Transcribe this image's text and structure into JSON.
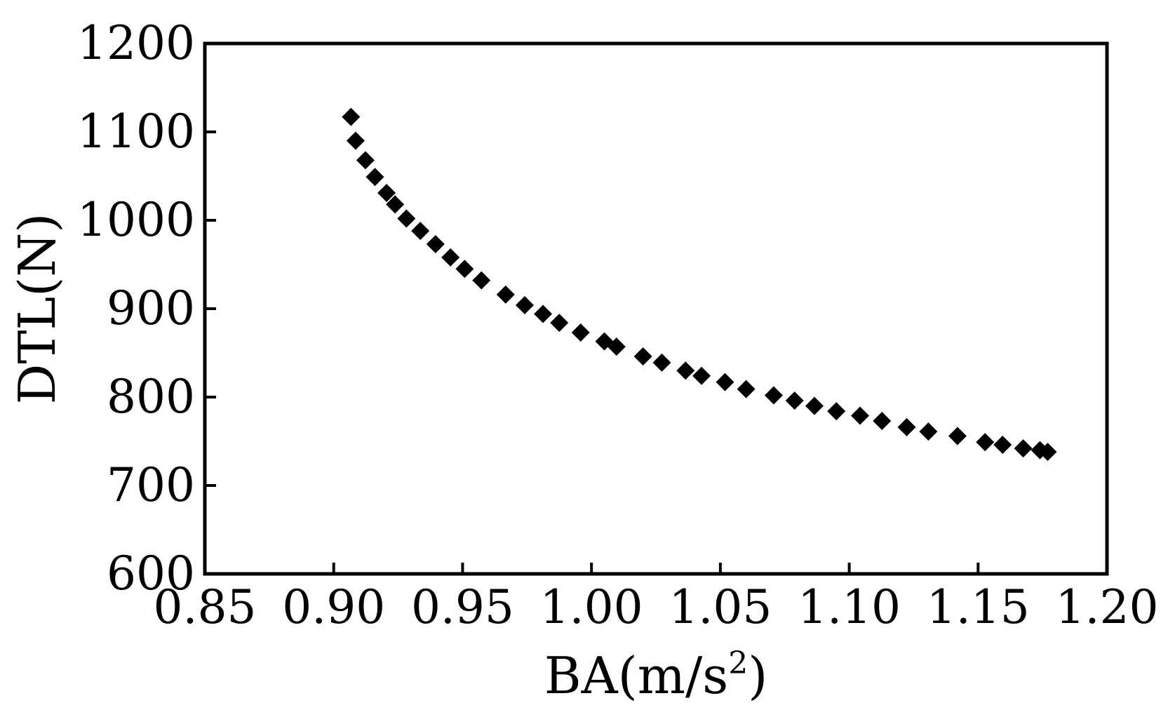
{
  "chart_data": {
    "type": "scatter",
    "title": "",
    "xlabel": "BA(m/s",
    "xlabel_sup": "2",
    "xlabel_suffix": ")",
    "ylabel": "DTL(N)",
    "xlim": [
      0.85,
      1.2
    ],
    "ylim": [
      600,
      1200
    ],
    "xticks": [
      "0.85",
      "0.90",
      "0.95",
      "1.00",
      "1.05",
      "1.10",
      "1.15",
      "1.20"
    ],
    "yticks": [
      "600",
      "700",
      "800",
      "900",
      "1000",
      "1100",
      "1200"
    ],
    "grid": false,
    "legend": "none",
    "marker": "diamond",
    "marker_color": "#000000",
    "series": [
      {
        "points": [
          [
            0.9067,
            1117
          ],
          [
            0.9085,
            1090
          ],
          [
            0.9123,
            1068
          ],
          [
            0.916,
            1049
          ],
          [
            0.9205,
            1031
          ],
          [
            0.9238,
            1018
          ],
          [
            0.9282,
            1002
          ],
          [
            0.9336,
            988
          ],
          [
            0.9395,
            973
          ],
          [
            0.9453,
            958
          ],
          [
            0.9508,
            945
          ],
          [
            0.9573,
            932
          ],
          [
            0.9667,
            916
          ],
          [
            0.9741,
            904
          ],
          [
            0.9812,
            894
          ],
          [
            0.9875,
            884
          ],
          [
            0.9958,
            873
          ],
          [
            1.005,
            863
          ],
          [
            1.0097,
            857
          ],
          [
            1.02,
            846
          ],
          [
            1.0273,
            839
          ],
          [
            1.0365,
            830
          ],
          [
            1.0427,
            824
          ],
          [
            1.0518,
            817
          ],
          [
            1.06,
            809
          ],
          [
            1.0707,
            802
          ],
          [
            1.0788,
            796
          ],
          [
            1.0865,
            790
          ],
          [
            1.095,
            784
          ],
          [
            1.1042,
            779
          ],
          [
            1.1127,
            773
          ],
          [
            1.1223,
            766
          ],
          [
            1.1307,
            761
          ],
          [
            1.142,
            756
          ],
          [
            1.1527,
            749
          ],
          [
            1.1595,
            746
          ],
          [
            1.1675,
            742
          ],
          [
            1.174,
            740
          ],
          [
            1.177,
            738
          ]
        ]
      }
    ]
  }
}
